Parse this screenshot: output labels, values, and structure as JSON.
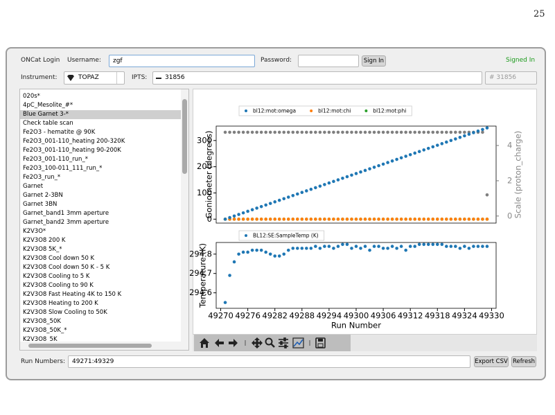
{
  "page_number": "25",
  "login": {
    "title": "ONCat Login",
    "username_label": "Username:",
    "username": "zgf",
    "password_label": "Password:",
    "sign_in": "Sign In",
    "status": "Signed In"
  },
  "instrument": {
    "label": "Instrument:",
    "value": "TOPAZ",
    "ipts_label": "IPTS:",
    "ipts": "31856",
    "ipts_number": "# 31856"
  },
  "runs_list": {
    "selected": 2,
    "items": [
      "020s*",
      "4pC_Mesolite_#*",
      "Blue Garnet 3-*",
      "Check table scan",
      "Fe2O3 - hematite @ 90K",
      "Fe2O3_001-110_heating 200-320K",
      "Fe2O3_001-110_heating 90-200K",
      "Fe2O3_001-110_run_*",
      "Fe2O3_100-011_111_run_*",
      "Fe2O3_run_*",
      "Garnet",
      "Garnet 2-3BN",
      "Garnet 3BN",
      "Garnet_band1 3mm aperture",
      "Garnet_band2 3mm aperture",
      "K2V3O*",
      "K2V3O8 200 K",
      "K2V3O8 5K_*",
      "K2V3O8 Cool down 50 K",
      "K2V3O8 Cool down 50 K - 5 K",
      "K2V3O8 Cooling to 5 K",
      "K2V3O8 Cooling to 90 K",
      "K2V3O8 Fast Heating 4K to 150 K",
      "K2V3O8 Heating to 200 K",
      "K2V3O8 Slow Cooling to  50K",
      "K2V3O8_50K",
      "K2V3O8_50K_*",
      "K2V3O8_5K"
    ]
  },
  "chart_data": [
    {
      "type": "scatter",
      "x": [
        49271,
        49272,
        49273,
        49274,
        49275,
        49276,
        49277,
        49278,
        49279,
        49280,
        49281,
        49282,
        49283,
        49284,
        49285,
        49286,
        49287,
        49288,
        49289,
        49290,
        49291,
        49292,
        49293,
        49294,
        49295,
        49296,
        49297,
        49298,
        49299,
        49300,
        49301,
        49302,
        49303,
        49304,
        49305,
        49306,
        49307,
        49308,
        49309,
        49310,
        49311,
        49312,
        49313,
        49314,
        49315,
        49316,
        49317,
        49318,
        49319,
        49320,
        49321,
        49322,
        49323,
        49324,
        49325,
        49326,
        49327,
        49328,
        49329
      ],
      "xlim": [
        49269,
        49331
      ],
      "ylim": [
        -15,
        355
      ],
      "yticks": [
        0,
        100,
        200,
        300
      ],
      "y2lim": [
        -0.4,
        5.1
      ],
      "y2ticks": [
        0,
        2,
        4
      ],
      "ylabel": "Goniometer (degrees)",
      "y2label": "Scale (proton_charge)",
      "series": [
        {
          "name": "bl12:mot:omega",
          "color": "#1f77b4",
          "values": [
            0,
            6,
            12,
            18,
            24,
            30,
            36,
            42,
            48,
            54,
            60,
            66,
            72,
            78,
            84,
            90,
            96,
            102,
            108,
            114,
            120,
            126,
            132,
            138,
            144,
            150,
            156,
            162,
            168,
            174,
            180,
            186,
            192,
            198,
            204,
            210,
            216,
            222,
            228,
            234,
            240,
            246,
            252,
            258,
            264,
            270,
            276,
            282,
            288,
            294,
            300,
            306,
            312,
            318,
            324,
            330,
            336,
            342,
            348
          ]
        },
        {
          "name": "bl12:mot:chi",
          "color": "#ff7f0e",
          "values": [
            0,
            0,
            0,
            0,
            0,
            0,
            0,
            0,
            0,
            0,
            0,
            0,
            0,
            0,
            0,
            0,
            0,
            0,
            0,
            0,
            0,
            0,
            0,
            0,
            0,
            0,
            0,
            0,
            0,
            0,
            0,
            0,
            0,
            0,
            0,
            0,
            0,
            0,
            0,
            0,
            0,
            0,
            0,
            0,
            0,
            0,
            0,
            0,
            0,
            0,
            0,
            0,
            0,
            0,
            0,
            0,
            0,
            0,
            0
          ]
        },
        {
          "name": "bl12:mot:phi",
          "color": "#2ca02c",
          "values": [
            0,
            0,
            0,
            0,
            0,
            0,
            0,
            0,
            0,
            0,
            0,
            0,
            0,
            0,
            0,
            0,
            0,
            0,
            0,
            0,
            0,
            0,
            0,
            0,
            0,
            0,
            0,
            0,
            0,
            0,
            0,
            0,
            0,
            0,
            0,
            0,
            0,
            0,
            0,
            0,
            0,
            0,
            0,
            0,
            0,
            0,
            0,
            0,
            0,
            0,
            0,
            0,
            0,
            0,
            0,
            0,
            0,
            0,
            0
          ]
        },
        {
          "color": "#7f7f7f",
          "axis": "y2",
          "values": [
            4.75,
            4.75,
            4.75,
            4.75,
            4.75,
            4.75,
            4.75,
            4.75,
            4.75,
            4.75,
            4.75,
            4.75,
            4.75,
            4.75,
            4.75,
            4.75,
            4.75,
            4.75,
            4.75,
            4.75,
            4.75,
            4.75,
            4.75,
            4.75,
            4.75,
            4.75,
            4.75,
            4.75,
            4.75,
            4.75,
            4.75,
            4.75,
            4.75,
            4.75,
            4.75,
            4.75,
            4.75,
            4.75,
            4.75,
            4.75,
            4.75,
            4.75,
            4.75,
            4.75,
            4.75,
            4.75,
            4.75,
            4.75,
            4.75,
            4.75,
            4.75,
            4.75,
            4.75,
            4.75,
            4.75,
            4.75,
            4.75,
            4.75,
            1.2
          ]
        }
      ]
    },
    {
      "type": "scatter",
      "x": [
        49271,
        49272,
        49273,
        49274,
        49275,
        49276,
        49277,
        49278,
        49279,
        49280,
        49281,
        49282,
        49283,
        49284,
        49285,
        49286,
        49287,
        49288,
        49289,
        49290,
        49291,
        49292,
        49293,
        49294,
        49295,
        49296,
        49297,
        49298,
        49299,
        49300,
        49301,
        49302,
        49303,
        49304,
        49305,
        49306,
        49307,
        49308,
        49309,
        49310,
        49311,
        49312,
        49313,
        49314,
        49315,
        49316,
        49317,
        49318,
        49319,
        49320,
        49321,
        49322,
        49323,
        49324,
        49325,
        49326,
        49327,
        49328,
        49329
      ],
      "xlim": [
        49269,
        49331
      ],
      "xticks": [
        49270,
        49276,
        49282,
        49288,
        49294,
        49300,
        49306,
        49312,
        49318,
        49324,
        49330
      ],
      "ylim": [
        294.52,
        294.86
      ],
      "yticks": [
        294.6,
        294.7,
        294.8
      ],
      "xlabel": "Run Number",
      "ylabel": "Temperature (K)",
      "series": [
        {
          "name": "BL12:SE:SampleTemp (K)",
          "color": "#1f77b4",
          "values": [
            294.55,
            294.69,
            294.76,
            294.8,
            294.81,
            294.81,
            294.82,
            294.82,
            294.82,
            294.81,
            294.8,
            294.79,
            294.79,
            294.8,
            294.82,
            294.83,
            294.83,
            294.83,
            294.83,
            294.83,
            294.84,
            294.83,
            294.84,
            294.84,
            294.83,
            294.84,
            294.85,
            294.85,
            294.83,
            294.84,
            294.83,
            294.84,
            294.82,
            294.84,
            294.84,
            294.83,
            294.83,
            294.84,
            294.83,
            294.84,
            294.82,
            294.84,
            294.84,
            294.85,
            294.85,
            294.85,
            294.85,
            294.85,
            294.85,
            294.84,
            294.84,
            294.84,
            294.83,
            294.84,
            294.83,
            294.84,
            294.84,
            294.84,
            294.84
          ]
        }
      ]
    }
  ],
  "footer": {
    "label": "Run Numbers:",
    "value": "49271:49329",
    "export": "Export CSV",
    "refresh": "Refresh"
  }
}
